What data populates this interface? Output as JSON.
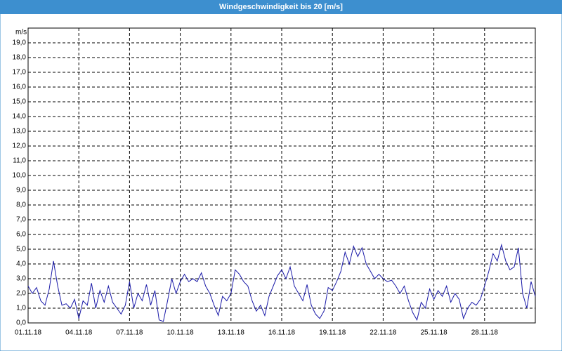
{
  "chart_data": {
    "type": "line",
    "title": "Windgeschwindigkeit bis 20 [m/s]",
    "y_label": "m/s",
    "xlim": [
      1,
      31
    ],
    "ylim": [
      0,
      20
    ],
    "grid": true,
    "xticks": [
      {
        "value": 1,
        "label": "01.11.18"
      },
      {
        "value": 4,
        "label": "04.11.18"
      },
      {
        "value": 7,
        "label": "07.11.18"
      },
      {
        "value": 10,
        "label": "10.11.18"
      },
      {
        "value": 13,
        "label": "13.11.18"
      },
      {
        "value": 16,
        "label": "16.11.18"
      },
      {
        "value": 19,
        "label": "19.11.18"
      },
      {
        "value": 22,
        "label": "22.11.18"
      },
      {
        "value": 25,
        "label": "25.11.18"
      },
      {
        "value": 28,
        "label": "28.11.18"
      }
    ],
    "yticks": [
      {
        "value": 0,
        "label": "0,0"
      },
      {
        "value": 1,
        "label": "1,0"
      },
      {
        "value": 2,
        "label": "2,0"
      },
      {
        "value": 3,
        "label": "3,0"
      },
      {
        "value": 4,
        "label": "4,0"
      },
      {
        "value": 5,
        "label": "5,0"
      },
      {
        "value": 6,
        "label": "6,0"
      },
      {
        "value": 7,
        "label": "7,0"
      },
      {
        "value": 8,
        "label": "8,0"
      },
      {
        "value": 9,
        "label": "9,0"
      },
      {
        "value": 10,
        "label": "10,0"
      },
      {
        "value": 11,
        "label": "11,0"
      },
      {
        "value": 12,
        "label": "12,0"
      },
      {
        "value": 13,
        "label": "13,0"
      },
      {
        "value": 14,
        "label": "14,0"
      },
      {
        "value": 15,
        "label": "15,0"
      },
      {
        "value": 16,
        "label": "16,0"
      },
      {
        "value": 17,
        "label": "17,0"
      },
      {
        "value": 18,
        "label": "18,0"
      },
      {
        "value": 19,
        "label": "19,0"
      }
    ],
    "x": [
      1,
      1.25,
      1.5,
      1.75,
      2,
      2.25,
      2.5,
      2.75,
      3,
      3.25,
      3.5,
      3.75,
      4,
      4.25,
      4.5,
      4.75,
      5,
      5.25,
      5.5,
      5.75,
      6,
      6.25,
      6.5,
      6.75,
      7,
      7.25,
      7.5,
      7.75,
      8,
      8.25,
      8.5,
      8.75,
      9,
      9.25,
      9.5,
      9.75,
      10,
      10.25,
      10.5,
      10.75,
      11,
      11.25,
      11.5,
      11.75,
      12,
      12.25,
      12.5,
      12.75,
      13,
      13.25,
      13.5,
      13.75,
      14,
      14.25,
      14.5,
      14.75,
      15,
      15.25,
      15.5,
      15.75,
      16,
      16.25,
      16.5,
      16.75,
      17,
      17.25,
      17.5,
      17.75,
      18,
      18.25,
      18.5,
      18.75,
      19,
      19.25,
      19.5,
      19.75,
      20,
      20.25,
      20.5,
      20.75,
      21,
      21.25,
      21.5,
      21.75,
      22,
      22.25,
      22.5,
      22.75,
      23,
      23.25,
      23.5,
      23.75,
      24,
      24.25,
      24.5,
      24.75,
      25,
      25.25,
      25.5,
      25.75,
      26,
      26.25,
      26.5,
      26.75,
      27,
      27.25,
      27.5,
      27.75,
      28,
      28.25,
      28.5,
      28.75,
      29,
      29.25,
      29.5,
      29.75,
      30,
      30.25,
      30.5,
      30.75,
      31
    ],
    "series": [
      {
        "name": "Windgeschwindigkeit",
        "color": "#1a1aa8",
        "values": [
          2.5,
          2.0,
          2.4,
          1.5,
          1.2,
          2.3,
          4.2,
          2.5,
          1.2,
          1.3,
          1.0,
          1.6,
          0.3,
          1.5,
          1.2,
          2.7,
          1.0,
          2.2,
          1.4,
          2.5,
          1.4,
          1.0,
          0.6,
          1.2,
          2.8,
          1.0,
          2.0,
          1.5,
          2.6,
          1.2,
          2.2,
          0.2,
          0.1,
          1.5,
          3.0,
          2.0,
          2.8,
          3.3,
          2.8,
          3.0,
          2.8,
          3.4,
          2.5,
          2.0,
          1.2,
          0.5,
          1.8,
          1.5,
          2.0,
          3.6,
          3.3,
          2.8,
          2.5,
          1.5,
          0.8,
          1.2,
          0.5,
          1.8,
          2.5,
          3.2,
          3.6,
          3.0,
          3.8,
          2.5,
          2.0,
          1.5,
          2.6,
          1.2,
          0.6,
          0.3,
          0.8,
          2.4,
          2.2,
          2.8,
          3.5,
          4.8,
          4.0,
          5.2,
          4.5,
          5.1,
          4.0,
          3.5,
          3.0,
          3.3,
          3.0,
          2.8,
          2.9,
          2.5,
          2.0,
          2.5,
          1.5,
          0.7,
          0.2,
          1.4,
          1.0,
          2.3,
          1.6,
          2.2,
          1.8,
          2.5,
          1.4,
          2.0,
          1.6,
          0.3,
          1.0,
          1.4,
          1.2,
          1.6,
          2.5,
          3.5,
          4.7,
          4.2,
          5.3,
          4.2,
          3.6,
          3.8,
          5.1,
          2.0,
          1.0,
          2.8,
          1.8
        ]
      }
    ]
  }
}
